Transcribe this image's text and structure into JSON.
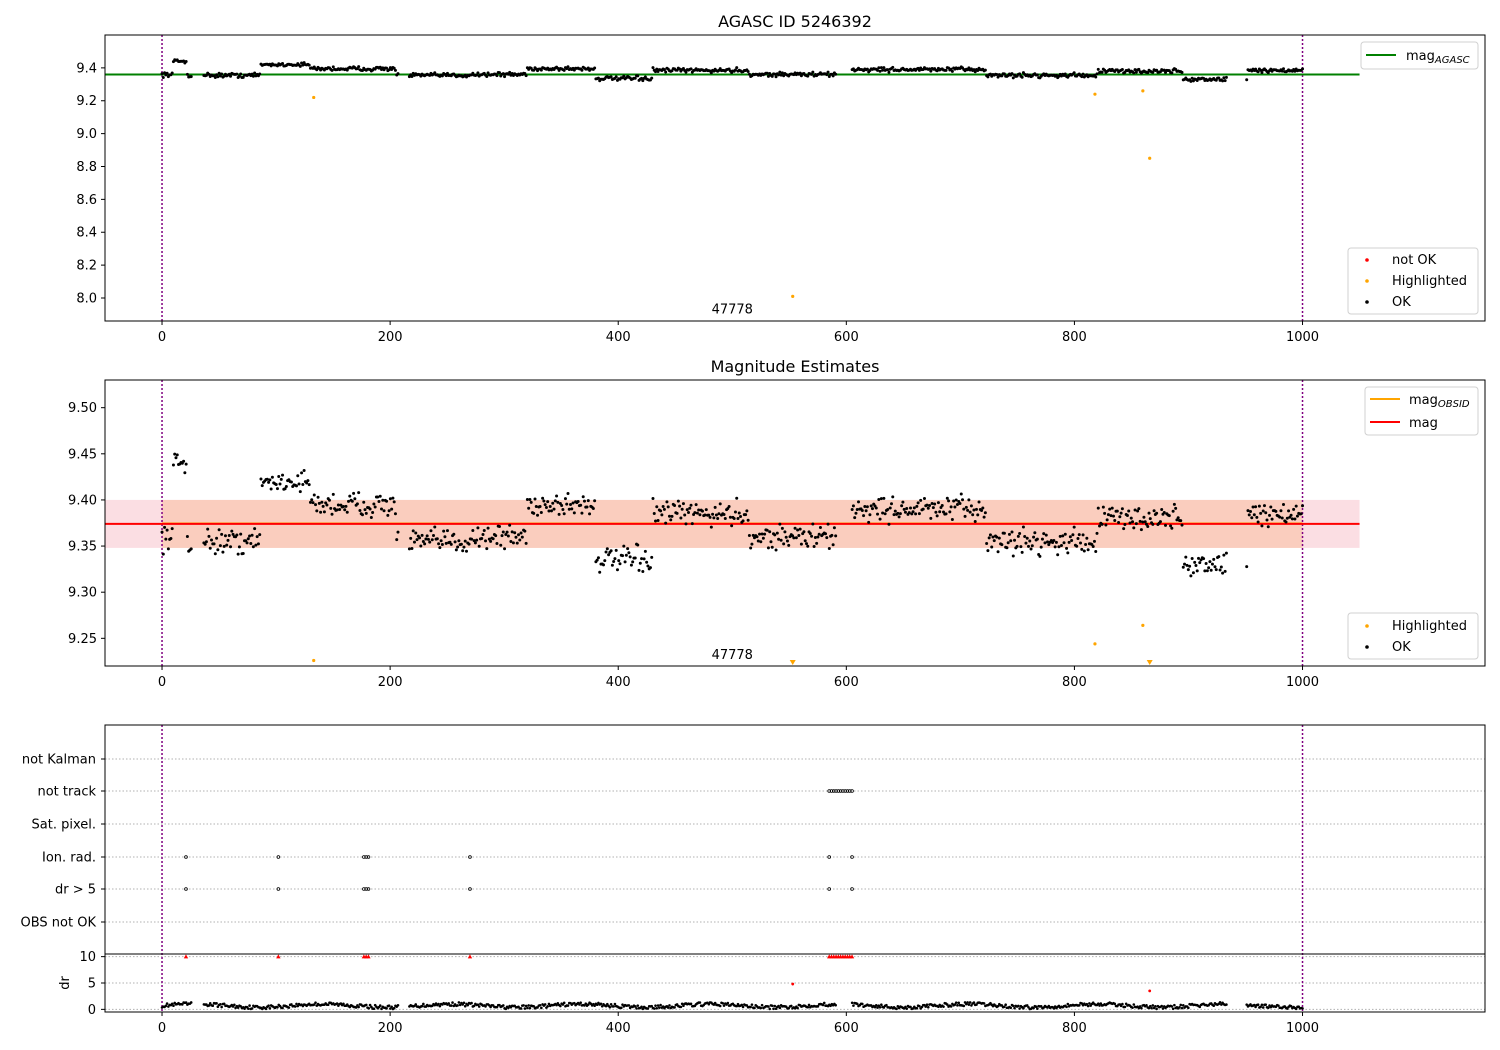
{
  "chart_data": [
    {
      "type": "scatter",
      "title": "AGASC ID 5246392",
      "xlim": [
        -50,
        1160
      ],
      "ylim": [
        7.86,
        9.6
      ],
      "xticks": [
        0,
        200,
        400,
        600,
        800,
        1000
      ],
      "yticks": [
        8.0,
        8.2,
        8.4,
        8.6,
        8.8,
        9.0,
        9.2,
        9.4
      ],
      "vlines": [
        0,
        1000
      ],
      "annotation": {
        "text": "47778",
        "x": 500,
        "y": 7.93
      },
      "mean_lines": [
        {
          "name": "mag_AGASC",
          "y": 9.36,
          "x_range": [
            -50,
            1050
          ],
          "color": "#008000"
        }
      ],
      "highlighted_points": [
        {
          "x": 133,
          "y": 9.22
        },
        {
          "x": 553,
          "y": 8.01
        },
        {
          "x": 818,
          "y": 9.24
        },
        {
          "x": 860,
          "y": 9.26
        },
        {
          "x": 866,
          "y": 8.85
        }
      ],
      "not_ok_points": [],
      "ok_series": {
        "x_range": [
          0,
          1000
        ],
        "n": 900,
        "gaps": [
          [
            26,
            36
          ],
          [
            207,
            216
          ],
          [
            591,
            605
          ],
          [
            934,
            950
          ]
        ],
        "segments": [
          {
            "x": [
              0,
              10
            ],
            "y": 9.36,
            "spread": 0.02
          },
          {
            "x": [
              10,
              22
            ],
            "y": 9.44,
            "spread": 0.02
          },
          {
            "x": [
              22,
              86
            ],
            "y": 9.355,
            "spread": 0.02
          },
          {
            "x": [
              86,
              130
            ],
            "y": 9.42,
            "spread": 0.015
          },
          {
            "x": [
              130,
              205
            ],
            "y": 9.395,
            "spread": 0.02
          },
          {
            "x": [
              205,
              270
            ],
            "y": 9.355,
            "spread": 0.018
          },
          {
            "x": [
              270,
              320
            ],
            "y": 9.36,
            "spread": 0.02
          },
          {
            "x": [
              320,
              380
            ],
            "y": 9.395,
            "spread": 0.02
          },
          {
            "x": [
              380,
              430
            ],
            "y": 9.335,
            "spread": 0.02
          },
          {
            "x": [
              430,
              515
            ],
            "y": 9.385,
            "spread": 0.02
          },
          {
            "x": [
              515,
              591
            ],
            "y": 9.36,
            "spread": 0.02
          },
          {
            "x": [
              605,
              722
            ],
            "y": 9.39,
            "spread": 0.02
          },
          {
            "x": [
              722,
              820
            ],
            "y": 9.355,
            "spread": 0.02
          },
          {
            "x": [
              820,
              895
            ],
            "y": 9.38,
            "spread": 0.02
          },
          {
            "x": [
              895,
              952
            ],
            "y": 9.33,
            "spread": 0.02
          },
          {
            "x": [
              952,
              1000
            ],
            "y": 9.385,
            "spread": 0.02
          }
        ]
      },
      "legend": {
        "placement": "lower-right",
        "entries": [
          {
            "label": "not OK",
            "color": "#ff0000"
          },
          {
            "label": "Highlighted",
            "color": "#ffa500"
          },
          {
            "label": "OK",
            "color": "#000000"
          }
        ]
      },
      "legend_line": {
        "placement": "upper-right",
        "label": "mag",
        "sub": "AGASC",
        "color": "#008000"
      }
    },
    {
      "type": "scatter",
      "title": "Magnitude Estimates",
      "xlim": [
        -50,
        1160
      ],
      "ylim": [
        9.22,
        9.53
      ],
      "xticks": [
        0,
        200,
        400,
        600,
        800,
        1000
      ],
      "yticks": [
        9.25,
        9.3,
        9.35,
        9.4,
        9.45,
        9.5
      ],
      "vlines": [
        0,
        1000
      ],
      "annotation": {
        "text": "47778",
        "x": 500,
        "y": 9.232
      },
      "bands": [
        {
          "y": [
            9.348,
            9.4
          ],
          "x_range": [
            -50,
            1050
          ],
          "color": "#f7b6c0",
          "opacity": 0.45
        },
        {
          "y": [
            9.348,
            9.4
          ],
          "x_range": [
            0,
            1000
          ],
          "color": "#f9c0a0",
          "opacity": 0.55
        }
      ],
      "mean_lines": [
        {
          "name": "mag_OBSID",
          "y": 9.3745,
          "x_range": [
            0,
            1000
          ],
          "color": "#ffa500"
        },
        {
          "name": "mag",
          "y": 9.374,
          "x_range": [
            -50,
            1050
          ],
          "color": "#ff0000"
        }
      ],
      "highlighted_points": [
        {
          "x": 133,
          "y": 9.226
        },
        {
          "x": 818,
          "y": 9.244
        },
        {
          "x": 860,
          "y": 9.264
        }
      ],
      "highlighted_offscale": [
        {
          "x": 553
        },
        {
          "x": 866
        }
      ],
      "not_ok_points": [],
      "ok_series": "same as panel 1",
      "legend": {
        "placement": "lower-right",
        "entries": [
          {
            "label": "Highlighted",
            "color": "#ffa500"
          },
          {
            "label": "OK",
            "color": "#000000"
          }
        ]
      },
      "legend_line": {
        "placement": "upper-right",
        "entries": [
          {
            "label": "mag",
            "sub": "OBSID",
            "color": "#ffa500"
          },
          {
            "label": "mag",
            "sub": "",
            "color": "#ff0000"
          }
        ]
      }
    },
    {
      "type": "scatter",
      "title": "",
      "xlim": [
        -50,
        1160
      ],
      "xticks": [
        0,
        200,
        400,
        600,
        800,
        1000
      ],
      "vlines": [
        0,
        1000
      ],
      "flag_categories": [
        "not Kalman",
        "not track",
        "Sat. pixel.",
        "Ion. rad.",
        "dr > 5",
        "OBS not OK"
      ],
      "flags": {
        "not Kalman": [],
        "not track": [
          585,
          587,
          589,
          591,
          593,
          595,
          597,
          599,
          601,
          603,
          605
        ],
        "Sat. pixel.": [],
        "Ion. rad.": [
          21,
          102,
          177,
          179,
          181,
          270,
          585,
          605
        ],
        "dr > 5": [
          21,
          102,
          177,
          179,
          181,
          270,
          585,
          605
        ],
        "OBS not OK": []
      },
      "dr": {
        "ylabel": "dr",
        "ylim": [
          -0.5,
          10.5
        ],
        "yticks": [
          0,
          5,
          10
        ],
        "clipped_at_10": [
          21,
          102,
          177,
          179,
          181,
          270,
          585,
          587,
          589,
          591,
          593,
          595,
          597,
          599,
          601,
          603,
          605
        ],
        "outliers": [
          {
            "x": 553,
            "y": 4.8
          },
          {
            "x": 866,
            "y": 3.5
          }
        ],
        "baseline": {
          "x_range": [
            0,
            1000
          ],
          "y": 0.7,
          "spread": 0.35
        }
      }
    }
  ]
}
